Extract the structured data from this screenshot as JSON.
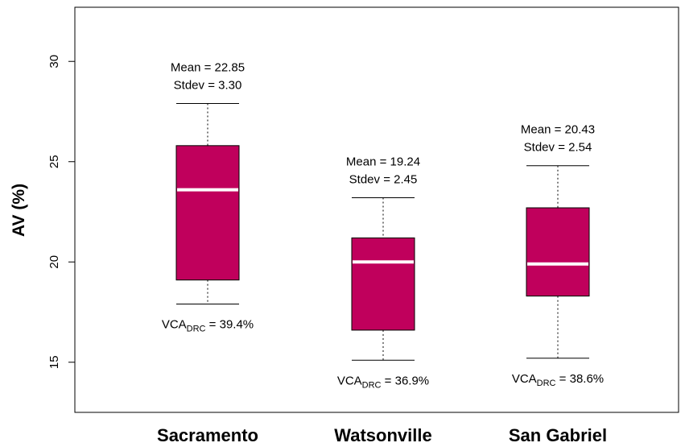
{
  "chart_data": {
    "type": "box",
    "ylabel": "AV (%)",
    "xlabel": "",
    "ylim": [
      12.5,
      32.7
    ],
    "yticks": [
      "15",
      "20",
      "25",
      "30"
    ],
    "categories": [
      "Sacramento",
      "Watsonville",
      "San Gabriel"
    ],
    "boxes": [
      {
        "category": "Sacramento",
        "whisker_low": 17.9,
        "q1": 19.1,
        "median": 23.6,
        "q3": 25.8,
        "whisker_high": 27.9,
        "mean_label": "Mean = 22.85",
        "stdev_label": "Stdev = 3.30",
        "vca_prefix": "VCA",
        "vca_sub": "DRC",
        "vca_value": " = 39.4%"
      },
      {
        "category": "Watsonville",
        "whisker_low": 15.1,
        "q1": 16.6,
        "median": 20.0,
        "q3": 21.2,
        "whisker_high": 23.2,
        "mean_label": "Mean = 19.24",
        "stdev_label": "Stdev = 2.45",
        "vca_prefix": "VCA",
        "vca_sub": "DRC",
        "vca_value": " = 36.9%"
      },
      {
        "category": "San Gabriel",
        "whisker_low": 15.2,
        "q1": 18.3,
        "median": 19.9,
        "q3": 22.7,
        "whisker_high": 24.8,
        "mean_label": "Mean = 20.43",
        "stdev_label": "Stdev = 2.54",
        "vca_prefix": "VCA",
        "vca_sub": "DRC",
        "vca_value": " = 38.6%"
      }
    ],
    "colors": {
      "box_fill": "#c0005c",
      "median_line": "#ffffff",
      "frame": "#000000"
    },
    "grid": false,
    "legend": "none"
  }
}
